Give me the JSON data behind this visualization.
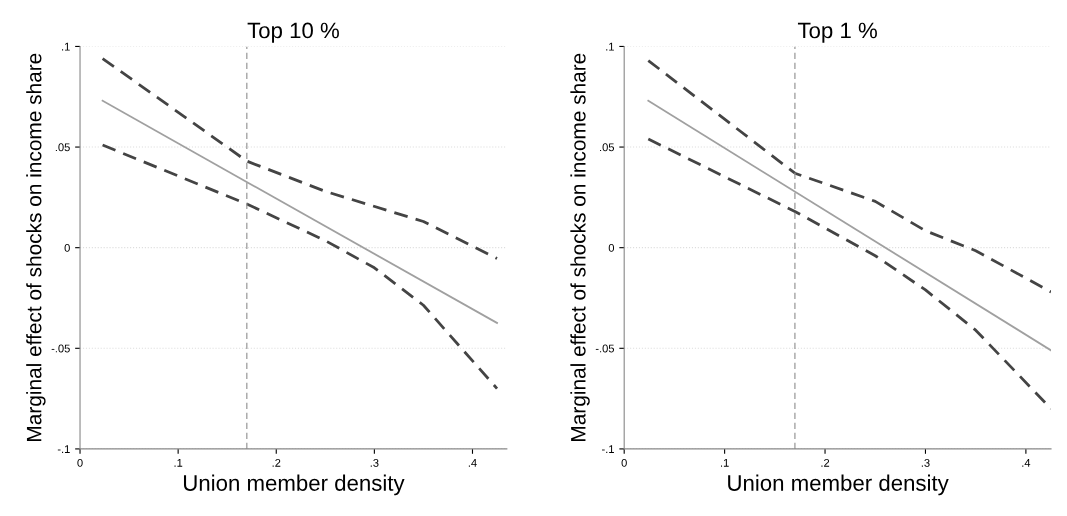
{
  "chart_data": [
    {
      "type": "line",
      "title": "Top 10 %",
      "xlabel": "Union member density",
      "ylabel": "Marginal effect of shocks on income share",
      "xlim": [
        0,
        0.435
      ],
      "ylim": [
        -0.1,
        0.1
      ],
      "xticks": [
        0,
        {
          "value": 0.1,
          "label": ".1"
        },
        {
          "value": 0.2,
          "label": ".2"
        },
        {
          "value": 0.3,
          "label": ".3"
        },
        {
          "value": 0.4,
          "label": ".4"
        }
      ],
      "yticks": [
        {
          "value": -0.1,
          "label": "-.1"
        },
        {
          "value": -0.05,
          "label": "-.05"
        },
        0,
        {
          "value": 0.05,
          "label": ".05"
        },
        {
          "value": 0.1,
          "label": ".1"
        }
      ],
      "grid": "y",
      "legend": false,
      "ref_lines": [
        {
          "axis": "x",
          "value": 0.17,
          "color": "#999999",
          "line_style": "dashed"
        }
      ],
      "series": [
        {
          "x": [
            0.023,
            0.425
          ],
          "values": [
            0.073,
            -0.0374
          ],
          "color": "#a0a0a0",
          "line_style": "solid"
        },
        {
          "x": [
            0.023,
            0.17,
            0.25,
            0.35,
            0.425
          ],
          "values": [
            0.094,
            0.043,
            0.028,
            0.013,
            -0.0054
          ],
          "color": "#444444",
          "line_style": "dashed"
        },
        {
          "x": [
            0.023,
            0.17,
            0.25,
            0.3,
            0.35,
            0.425
          ],
          "values": [
            0.051,
            0.0217,
            0.0035,
            -0.01,
            -0.0286,
            -0.07
          ],
          "color": "#444444",
          "line_style": "dashed"
        }
      ]
    },
    {
      "type": "line",
      "title": "Top 1 %",
      "xlabel": "Union member density",
      "ylabel": "Marginal effect of shocks on income share",
      "xlim": [
        0,
        0.425
      ],
      "ylim": [
        -0.1,
        0.1
      ],
      "xticks": [
        0,
        {
          "value": 0.1,
          "label": ".1"
        },
        {
          "value": 0.2,
          "label": ".2"
        },
        {
          "value": 0.3,
          "label": ".3"
        },
        {
          "value": 0.4,
          "label": ".4"
        }
      ],
      "yticks": [
        {
          "value": -0.1,
          "label": "-.1"
        },
        {
          "value": -0.05,
          "label": "-.05"
        },
        0,
        {
          "value": 0.05,
          "label": ".05"
        },
        {
          "value": 0.1,
          "label": ".1"
        }
      ],
      "grid": "y",
      "legend": false,
      "ref_lines": [
        {
          "axis": "x",
          "value": 0.17,
          "color": "#999999",
          "line_style": "dashed"
        }
      ],
      "series": [
        {
          "x": [
            0.024,
            0.425
          ],
          "values": [
            0.073,
            -0.051
          ],
          "color": "#a0a0a0",
          "line_style": "solid"
        },
        {
          "x": [
            0.024,
            0.17,
            0.25,
            0.3,
            0.35,
            0.425
          ],
          "values": [
            0.093,
            0.037,
            0.023,
            0.0084,
            -0.0015,
            -0.022
          ],
          "color": "#444444",
          "line_style": "dashed"
        },
        {
          "x": [
            0.024,
            0.17,
            0.25,
            0.3,
            0.35,
            0.425
          ],
          "values": [
            0.054,
            0.018,
            -0.004,
            -0.021,
            -0.041,
            -0.08
          ],
          "color": "#444444",
          "line_style": "dashed"
        }
      ]
    }
  ]
}
